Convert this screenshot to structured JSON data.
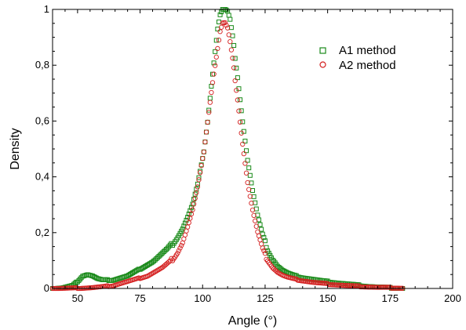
{
  "chart_data": {
    "type": "scatter",
    "title": "",
    "xlabel": "Angle (°)",
    "ylabel": "Density",
    "xlim": [
      40,
      200
    ],
    "ylim": [
      0,
      1
    ],
    "xticks": [
      50,
      75,
      100,
      125,
      150,
      175,
      200
    ],
    "xtick_labels": [
      "50",
      "75",
      "100",
      "125",
      "150",
      "175",
      "200"
    ],
    "yticks": [
      0,
      0.2,
      0.4,
      0.6,
      0.8,
      1
    ],
    "ytick_labels": [
      "0",
      "0,2",
      "0,4",
      "0,6",
      "0,8",
      "1"
    ],
    "grid": false,
    "legend_position": "top-right",
    "series": [
      {
        "name": "A1 method",
        "marker": "square",
        "color": "#1a8a1a",
        "points": [
          [
            40,
            0.0
          ],
          [
            44,
            0.002
          ],
          [
            48,
            0.01
          ],
          [
            50,
            0.025
          ],
          [
            52,
            0.045
          ],
          [
            54,
            0.05
          ],
          [
            56,
            0.045
          ],
          [
            58,
            0.035
          ],
          [
            60,
            0.03
          ],
          [
            62,
            0.03
          ],
          [
            64,
            0.03
          ],
          [
            66,
            0.035
          ],
          [
            68,
            0.04
          ],
          [
            70,
            0.045
          ],
          [
            72,
            0.055
          ],
          [
            74,
            0.065
          ],
          [
            76,
            0.075
          ],
          [
            78,
            0.085
          ],
          [
            80,
            0.095
          ],
          [
            82,
            0.11
          ],
          [
            84,
            0.125
          ],
          [
            86,
            0.14
          ],
          [
            88,
            0.16
          ],
          [
            90,
            0.185
          ],
          [
            92,
            0.215
          ],
          [
            94,
            0.255
          ],
          [
            96,
            0.3
          ],
          [
            98,
            0.37
          ],
          [
            100,
            0.46
          ],
          [
            102,
            0.6
          ],
          [
            104,
            0.77
          ],
          [
            106,
            0.93
          ],
          [
            107,
            0.98
          ],
          [
            108,
            1.0
          ],
          [
            109,
            1.0
          ],
          [
            110,
            0.99
          ],
          [
            111,
            0.96
          ],
          [
            112,
            0.9
          ],
          [
            114,
            0.76
          ],
          [
            116,
            0.6
          ],
          [
            118,
            0.46
          ],
          [
            120,
            0.35
          ],
          [
            122,
            0.26
          ],
          [
            124,
            0.19
          ],
          [
            126,
            0.14
          ],
          [
            128,
            0.105
          ],
          [
            130,
            0.08
          ],
          [
            132,
            0.065
          ],
          [
            134,
            0.055
          ],
          [
            136,
            0.048
          ],
          [
            138,
            0.043
          ],
          [
            140,
            0.039
          ],
          [
            142,
            0.036
          ],
          [
            144,
            0.033
          ],
          [
            146,
            0.03
          ],
          [
            148,
            0.027
          ],
          [
            150,
            0.025
          ],
          [
            154,
            0.02
          ],
          [
            158,
            0.016
          ],
          [
            162,
            0.012
          ],
          [
            166,
            0.008
          ],
          [
            170,
            0.005
          ],
          [
            174,
            0.003
          ],
          [
            178,
            0.001
          ],
          [
            180,
            0.0
          ]
        ]
      },
      {
        "name": "A2 method",
        "marker": "circle",
        "color": "#d42020",
        "points": [
          [
            40,
            0.0
          ],
          [
            50,
            0.001
          ],
          [
            56,
            0.003
          ],
          [
            60,
            0.006
          ],
          [
            64,
            0.01
          ],
          [
            66,
            0.015
          ],
          [
            68,
            0.02
          ],
          [
            70,
            0.025
          ],
          [
            72,
            0.03
          ],
          [
            74,
            0.035
          ],
          [
            76,
            0.04
          ],
          [
            78,
            0.045
          ],
          [
            80,
            0.055
          ],
          [
            82,
            0.065
          ],
          [
            84,
            0.075
          ],
          [
            86,
            0.09
          ],
          [
            88,
            0.105
          ],
          [
            90,
            0.13
          ],
          [
            92,
            0.165
          ],
          [
            94,
            0.22
          ],
          [
            96,
            0.28
          ],
          [
            98,
            0.36
          ],
          [
            100,
            0.46
          ],
          [
            102,
            0.6
          ],
          [
            104,
            0.74
          ],
          [
            106,
            0.86
          ],
          [
            107,
            0.92
          ],
          [
            108,
            0.95
          ],
          [
            109,
            0.95
          ],
          [
            110,
            0.93
          ],
          [
            111,
            0.88
          ],
          [
            112,
            0.82
          ],
          [
            114,
            0.68
          ],
          [
            116,
            0.52
          ],
          [
            118,
            0.38
          ],
          [
            120,
            0.28
          ],
          [
            122,
            0.2
          ],
          [
            124,
            0.14
          ],
          [
            126,
            0.1
          ],
          [
            128,
            0.075
          ],
          [
            130,
            0.058
          ],
          [
            132,
            0.047
          ],
          [
            134,
            0.04
          ],
          [
            136,
            0.035
          ],
          [
            138,
            0.031
          ],
          [
            140,
            0.028
          ],
          [
            142,
            0.025
          ],
          [
            144,
            0.022
          ],
          [
            146,
            0.02
          ],
          [
            148,
            0.018
          ],
          [
            150,
            0.016
          ],
          [
            154,
            0.013
          ],
          [
            158,
            0.01
          ],
          [
            162,
            0.008
          ],
          [
            166,
            0.006
          ],
          [
            170,
            0.004
          ],
          [
            174,
            0.003
          ],
          [
            178,
            0.002
          ],
          [
            180,
            0.001
          ]
        ]
      }
    ]
  }
}
